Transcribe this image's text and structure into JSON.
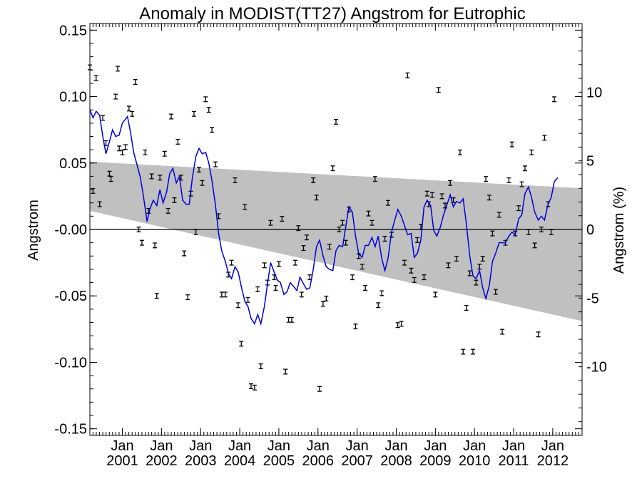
{
  "chart_data": {
    "type": "line",
    "title": "Anomaly in MODIST(TT27) Angstrom for Eutrophic",
    "ylabel": "Angstrom",
    "ylabel_right": "Angstrom (%)",
    "xlabel": "",
    "xlim": [
      2000.17,
      2012.75
    ],
    "ylim": [
      -0.155,
      0.155
    ],
    "ylim_right": [
      -15,
      15
    ],
    "grid": false,
    "yticks": [
      {
        "v": 0.15,
        "label": "0.15"
      },
      {
        "v": 0.1,
        "label": "0.10"
      },
      {
        "v": 0.05,
        "label": "0.05"
      },
      {
        "v": 0.0,
        "label": "-0.00"
      },
      {
        "v": -0.05,
        "label": "-0.05"
      },
      {
        "v": -0.1,
        "label": "-0.10"
      },
      {
        "v": -0.15,
        "label": "-0.15"
      }
    ],
    "yticks_right": [
      {
        "v": 10,
        "label": "10"
      },
      {
        "v": 5,
        "label": "5"
      },
      {
        "v": 0,
        "label": "0"
      },
      {
        "v": -5,
        "label": "-5"
      },
      {
        "v": -10,
        "label": "-10"
      }
    ],
    "xticks": [
      {
        "x": 2001.0,
        "month": "Jan",
        "year": "2001"
      },
      {
        "x": 2002.0,
        "month": "Jan",
        "year": "2002"
      },
      {
        "x": 2003.0,
        "month": "Jan",
        "year": "2003"
      },
      {
        "x": 2004.0,
        "month": "Jan",
        "year": "2004"
      },
      {
        "x": 2005.0,
        "month": "Jan",
        "year": "2005"
      },
      {
        "x": 2006.0,
        "month": "Jan",
        "year": "2006"
      },
      {
        "x": 2007.0,
        "month": "Jan",
        "year": "2007"
      },
      {
        "x": 2008.0,
        "month": "Jan",
        "year": "2008"
      },
      {
        "x": 2009.0,
        "month": "Jan",
        "year": "2009"
      },
      {
        "x": 2010.0,
        "month": "Jan",
        "year": "2010"
      },
      {
        "x": 2011.0,
        "month": "Jan",
        "year": "2011"
      },
      {
        "x": 2012.0,
        "month": "Jan",
        "year": "2012"
      }
    ],
    "trend_band": {
      "upper": [
        [
          2000.17,
          0.051
        ],
        [
          2012.75,
          0.031
        ]
      ],
      "lower": [
        [
          2000.17,
          0.014
        ],
        [
          2012.75,
          -0.069
        ]
      ],
      "color": "#c0c0c0"
    },
    "zero_line": 0,
    "monthly_points": [
      [
        2000.17,
        0.122
      ],
      [
        2000.25,
        0.029
      ],
      [
        2000.33,
        0.114
      ],
      [
        2000.42,
        0.019
      ],
      [
        2000.5,
        0.084
      ],
      [
        2000.58,
        0.065
      ],
      [
        2000.67,
        0.042
      ],
      [
        2000.71,
        0.038
      ],
      [
        2000.83,
        0.1
      ],
      [
        2000.88,
        0.121
      ],
      [
        2000.92,
        0.061
      ],
      [
        2001.0,
        0.058
      ],
      [
        2001.08,
        0.062
      ],
      [
        2001.17,
        0.091
      ],
      [
        2001.25,
        0.087
      ],
      [
        2001.33,
        0.111
      ],
      [
        2001.42,
        0.0
      ],
      [
        2001.5,
        -0.01
      ],
      [
        2001.58,
        0.058
      ],
      [
        2001.67,
        0.014
      ],
      [
        2001.75,
        0.04
      ],
      [
        2001.83,
        -0.012
      ],
      [
        2001.88,
        -0.05
      ],
      [
        2001.96,
        0.039
      ],
      [
        2002.08,
        0.057
      ],
      [
        2002.17,
        0.014
      ],
      [
        2002.25,
        0.085
      ],
      [
        2002.33,
        0.022
      ],
      [
        2002.42,
        0.066
      ],
      [
        2002.5,
        0.039
      ],
      [
        2002.58,
        -0.018
      ],
      [
        2002.67,
        -0.051
      ],
      [
        2002.75,
        0.027
      ],
      [
        2002.83,
        0.087
      ],
      [
        2002.88,
        -0.002
      ],
      [
        2002.96,
        0.045
      ],
      [
        2003.04,
        0.035
      ],
      [
        2003.13,
        0.098
      ],
      [
        2003.21,
        0.09
      ],
      [
        2003.29,
        0.075
      ],
      [
        2003.38,
        0.049
      ],
      [
        2003.46,
        0.01
      ],
      [
        2003.54,
        -0.049
      ],
      [
        2003.63,
        -0.049
      ],
      [
        2003.71,
        -0.034
      ],
      [
        2003.79,
        -0.025
      ],
      [
        2003.88,
        0.037
      ],
      [
        2003.96,
        -0.057
      ],
      [
        2004.04,
        -0.086
      ],
      [
        2004.13,
        0.017
      ],
      [
        2004.21,
        -0.053
      ],
      [
        2004.29,
        -0.118
      ],
      [
        2004.38,
        -0.119
      ],
      [
        2004.46,
        -0.045
      ],
      [
        2004.54,
        -0.103
      ],
      [
        2004.63,
        -0.027
      ],
      [
        2004.71,
        -0.04
      ],
      [
        2004.79,
        0.005
      ],
      [
        2004.88,
        -0.036
      ],
      [
        2004.92,
        -0.044
      ],
      [
        2005.0,
        -0.026
      ],
      [
        2005.08,
        0.008
      ],
      [
        2005.17,
        -0.107
      ],
      [
        2005.25,
        -0.068
      ],
      [
        2005.33,
        -0.068
      ],
      [
        2005.42,
        -0.025
      ],
      [
        2005.5,
        0.001
      ],
      [
        2005.58,
        -0.049
      ],
      [
        2005.63,
        -0.014
      ],
      [
        2005.71,
        -0.006
      ],
      [
        2005.79,
        -0.036
      ],
      [
        2005.88,
        0.037
      ],
      [
        2005.96,
        0.024
      ],
      [
        2006.04,
        -0.12
      ],
      [
        2006.13,
        -0.056
      ],
      [
        2006.21,
        -0.052
      ],
      [
        2006.29,
        -0.013
      ],
      [
        2006.38,
        0.046
      ],
      [
        2006.46,
        0.081
      ],
      [
        2006.54,
        0.0
      ],
      [
        2006.63,
        0.005
      ],
      [
        2006.71,
        -0.01
      ],
      [
        2006.79,
        0.015
      ],
      [
        2006.88,
        -0.036
      ],
      [
        2006.96,
        -0.073
      ],
      [
        2007.04,
        -0.02
      ],
      [
        2007.13,
        -0.028
      ],
      [
        2007.21,
        -0.044
      ],
      [
        2007.29,
        0.012
      ],
      [
        2007.38,
        0.005
      ],
      [
        2007.46,
        0.038
      ],
      [
        2007.54,
        -0.057
      ],
      [
        2007.63,
        -0.048
      ],
      [
        2007.71,
        -0.007
      ],
      [
        2007.79,
        0.02
      ],
      [
        2007.88,
        -0.004
      ],
      [
        2008.04,
        -0.072
      ],
      [
        2008.13,
        -0.071
      ],
      [
        2008.21,
        -0.025
      ],
      [
        2008.29,
        0.116
      ],
      [
        2008.38,
        -0.031
      ],
      [
        2008.46,
        -0.038
      ],
      [
        2008.54,
        -0.008
      ],
      [
        2008.63,
        0.002
      ],
      [
        2008.71,
        -0.036
      ],
      [
        2008.79,
        0.027
      ],
      [
        2008.83,
        0.019
      ],
      [
        2008.92,
        0.026
      ],
      [
        2009.0,
        -0.049
      ],
      [
        2009.08,
        0.105
      ],
      [
        2009.17,
        0.025
      ],
      [
        2009.25,
        0.018
      ],
      [
        2009.33,
        -0.027
      ],
      [
        2009.38,
        0.035
      ],
      [
        2009.46,
        0.022
      ],
      [
        2009.54,
        -0.022
      ],
      [
        2009.63,
        0.058
      ],
      [
        2009.71,
        -0.092
      ],
      [
        2009.79,
        -0.059
      ],
      [
        2009.88,
        -0.033
      ],
      [
        2009.96,
        -0.092
      ],
      [
        2010.04,
        -0.04
      ],
      [
        2010.13,
        -0.028
      ],
      [
        2010.21,
        -0.022
      ],
      [
        2010.29,
        0.038
      ],
      [
        2010.38,
        0.024
      ],
      [
        2010.46,
        -0.003
      ],
      [
        2010.54,
        -0.047
      ],
      [
        2010.63,
        0.011
      ],
      [
        2010.71,
        -0.077
      ],
      [
        2010.79,
        -0.01
      ],
      [
        2010.88,
        0.037
      ],
      [
        2010.96,
        0.064
      ],
      [
        2011.04,
        -0.003
      ],
      [
        2011.13,
        0.016
      ],
      [
        2011.21,
        0.034
      ],
      [
        2011.29,
        0.046
      ],
      [
        2011.38,
        -0.002
      ],
      [
        2011.46,
        0.058
      ],
      [
        2011.54,
        -0.012
      ],
      [
        2011.63,
        -0.079
      ],
      [
        2011.71,
        0.0
      ],
      [
        2011.79,
        0.069
      ],
      [
        2011.88,
        0.019
      ],
      [
        2011.96,
        -0.002
      ],
      [
        2012.04,
        0.098
      ]
    ],
    "error_halfwidth": 0.0018,
    "smoothed_series": [
      [
        2000.17,
        0.09
      ],
      [
        2000.25,
        0.084
      ],
      [
        2000.33,
        0.089
      ],
      [
        2000.42,
        0.086
      ],
      [
        2000.5,
        0.07
      ],
      [
        2000.58,
        0.057
      ],
      [
        2000.67,
        0.066
      ],
      [
        2000.75,
        0.075
      ],
      [
        2000.83,
        0.07
      ],
      [
        2000.92,
        0.071
      ],
      [
        2001.0,
        0.08
      ],
      [
        2001.08,
        0.083
      ],
      [
        2001.13,
        0.085
      ],
      [
        2001.21,
        0.073
      ],
      [
        2001.29,
        0.058
      ],
      [
        2001.38,
        0.048
      ],
      [
        2001.46,
        0.039
      ],
      [
        2001.54,
        0.025
      ],
      [
        2001.63,
        0.006
      ],
      [
        2001.71,
        0.016
      ],
      [
        2001.79,
        0.022
      ],
      [
        2001.88,
        0.018
      ],
      [
        2001.96,
        0.03
      ],
      [
        2002.04,
        0.02
      ],
      [
        2002.13,
        0.028
      ],
      [
        2002.21,
        0.042
      ],
      [
        2002.29,
        0.046
      ],
      [
        2002.38,
        0.035
      ],
      [
        2002.46,
        0.04
      ],
      [
        2002.54,
        0.022
      ],
      [
        2002.63,
        0.019
      ],
      [
        2002.71,
        0.019
      ],
      [
        2002.79,
        0.039
      ],
      [
        2002.88,
        0.055
      ],
      [
        2002.96,
        0.061
      ],
      [
        2003.04,
        0.057
      ],
      [
        2003.13,
        0.058
      ],
      [
        2003.21,
        0.05
      ],
      [
        2003.29,
        0.037
      ],
      [
        2003.38,
        0.018
      ],
      [
        2003.46,
        -0.003
      ],
      [
        2003.54,
        -0.016
      ],
      [
        2003.63,
        -0.024
      ],
      [
        2003.71,
        -0.033
      ],
      [
        2003.79,
        -0.037
      ],
      [
        2003.88,
        -0.028
      ],
      [
        2003.96,
        -0.032
      ],
      [
        2004.04,
        -0.043
      ],
      [
        2004.13,
        -0.054
      ],
      [
        2004.21,
        -0.058
      ],
      [
        2004.29,
        -0.067
      ],
      [
        2004.38,
        -0.071
      ],
      [
        2004.46,
        -0.064
      ],
      [
        2004.54,
        -0.071
      ],
      [
        2004.63,
        -0.058
      ],
      [
        2004.71,
        -0.041
      ],
      [
        2004.79,
        -0.025
      ],
      [
        2004.88,
        -0.032
      ],
      [
        2004.96,
        -0.038
      ],
      [
        2005.04,
        -0.04
      ],
      [
        2005.13,
        -0.049
      ],
      [
        2005.21,
        -0.047
      ],
      [
        2005.29,
        -0.04
      ],
      [
        2005.38,
        -0.043
      ],
      [
        2005.46,
        -0.046
      ],
      [
        2005.54,
        -0.036
      ],
      [
        2005.63,
        -0.041
      ],
      [
        2005.71,
        -0.045
      ],
      [
        2005.79,
        -0.044
      ],
      [
        2005.88,
        -0.03
      ],
      [
        2005.96,
        -0.013
      ],
      [
        2006.04,
        -0.008
      ],
      [
        2006.13,
        -0.02
      ],
      [
        2006.21,
        -0.028
      ],
      [
        2006.29,
        -0.03
      ],
      [
        2006.38,
        -0.031
      ],
      [
        2006.46,
        -0.016
      ],
      [
        2006.54,
        -0.012
      ],
      [
        2006.63,
        -0.013
      ],
      [
        2006.71,
        0.002
      ],
      [
        2006.79,
        0.017
      ],
      [
        2006.88,
        0.013
      ],
      [
        2006.96,
        -0.005
      ],
      [
        2007.04,
        -0.018
      ],
      [
        2007.13,
        -0.021
      ],
      [
        2007.21,
        -0.012
      ],
      [
        2007.29,
        -0.012
      ],
      [
        2007.38,
        -0.006
      ],
      [
        2007.46,
        -0.013
      ],
      [
        2007.54,
        -0.005
      ],
      [
        2007.63,
        -0.022
      ],
      [
        2007.71,
        -0.031
      ],
      [
        2007.79,
        -0.022
      ],
      [
        2007.88,
        -0.002
      ],
      [
        2007.96,
        0.007
      ],
      [
        2008.04,
        0.015
      ],
      [
        2008.13,
        0.01
      ],
      [
        2008.21,
        0.003
      ],
      [
        2008.29,
        -0.004
      ],
      [
        2008.38,
        -0.003
      ],
      [
        2008.46,
        -0.021
      ],
      [
        2008.54,
        -0.018
      ],
      [
        2008.63,
        -0.008
      ],
      [
        2008.71,
        0.017
      ],
      [
        2008.79,
        0.022
      ],
      [
        2008.88,
        0.018
      ],
      [
        2008.96,
        -0.001
      ],
      [
        2009.04,
        -0.005
      ],
      [
        2009.13,
        0.002
      ],
      [
        2009.21,
        0.011
      ],
      [
        2009.29,
        0.018
      ],
      [
        2009.38,
        0.026
      ],
      [
        2009.46,
        0.017
      ],
      [
        2009.54,
        0.021
      ],
      [
        2009.63,
        0.02
      ],
      [
        2009.71,
        0.023
      ],
      [
        2009.79,
        0.005
      ],
      [
        2009.88,
        -0.02
      ],
      [
        2009.96,
        -0.035
      ],
      [
        2010.04,
        -0.037
      ],
      [
        2010.13,
        -0.031
      ],
      [
        2010.21,
        -0.044
      ],
      [
        2010.29,
        -0.052
      ],
      [
        2010.38,
        -0.042
      ],
      [
        2010.46,
        -0.024
      ],
      [
        2010.54,
        -0.018
      ],
      [
        2010.63,
        -0.01
      ],
      [
        2010.71,
        -0.01
      ],
      [
        2010.79,
        -0.01
      ],
      [
        2010.88,
        -0.005
      ],
      [
        2010.96,
        -0.002
      ],
      [
        2011.04,
        -0.004
      ],
      [
        2011.13,
        0.008
      ],
      [
        2011.21,
        0.011
      ],
      [
        2011.29,
        0.027
      ],
      [
        2011.38,
        0.032
      ],
      [
        2011.46,
        0.024
      ],
      [
        2011.54,
        0.013
      ],
      [
        2011.63,
        0.007
      ],
      [
        2011.71,
        0.01
      ],
      [
        2011.79,
        0.007
      ],
      [
        2011.88,
        0.019
      ],
      [
        2011.96,
        0.024
      ],
      [
        2012.04,
        0.036
      ],
      [
        2012.13,
        0.039
      ]
    ],
    "smoothed_color": "#0000dd"
  }
}
